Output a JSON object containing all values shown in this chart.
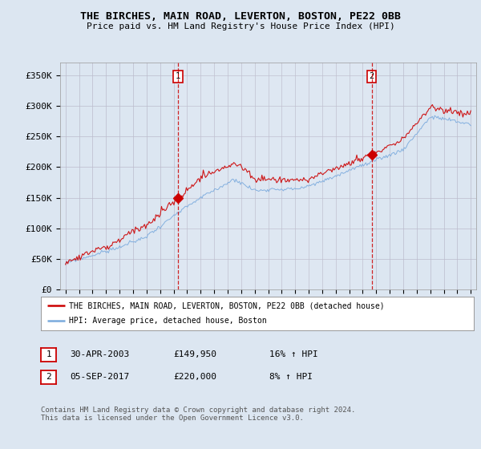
{
  "title": "THE BIRCHES, MAIN ROAD, LEVERTON, BOSTON, PE22 0BB",
  "subtitle": "Price paid vs. HM Land Registry's House Price Index (HPI)",
  "bg_color": "#dce6f1",
  "plot_bg_color": "#dce6f1",
  "red_line_color": "#cc0000",
  "blue_line_color": "#7aaadd",
  "vline_color": "#cc0000",
  "grid_color": "#bbbbcc",
  "ylim": [
    0,
    370000
  ],
  "yticks": [
    0,
    50000,
    100000,
    150000,
    200000,
    250000,
    300000,
    350000
  ],
  "ytick_labels": [
    "£0",
    "£50K",
    "£100K",
    "£150K",
    "£200K",
    "£250K",
    "£300K",
    "£350K"
  ],
  "xstart": 1995,
  "xend": 2025,
  "marker1_date": 2003.33,
  "marker1_value": 149950,
  "marker2_date": 2017.67,
  "marker2_value": 220000,
  "legend_line1": "THE BIRCHES, MAIN ROAD, LEVERTON, BOSTON, PE22 0BB (detached house)",
  "legend_line2": "HPI: Average price, detached house, Boston",
  "table_row1": [
    "1",
    "30-APR-2003",
    "£149,950",
    "16% ↑ HPI"
  ],
  "table_row2": [
    "2",
    "05-SEP-2017",
    "£220,000",
    "8% ↑ HPI"
  ],
  "footnote": "Contains HM Land Registry data © Crown copyright and database right 2024.\nThis data is licensed under the Open Government Licence v3.0."
}
